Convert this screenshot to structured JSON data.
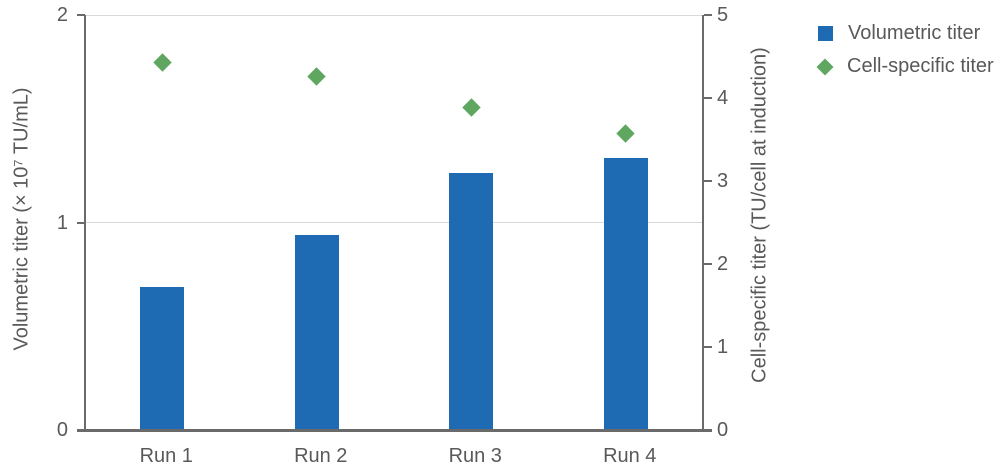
{
  "chart_data": {
    "type": "bar",
    "categories": [
      "Run 1",
      "Run 2",
      "Run 3",
      "Run 4"
    ],
    "series": [
      {
        "name": "Volumetric titer",
        "type": "bar",
        "axis": "left",
        "marker": "square",
        "color": "#1e6bb3",
        "values": [
          0.69,
          0.94,
          1.24,
          1.31
        ]
      },
      {
        "name": "Cell-specific titer",
        "type": "scatter",
        "axis": "right",
        "marker": "diamond",
        "color": "#5fa661",
        "values": [
          4.43,
          4.26,
          3.88,
          3.57
        ]
      }
    ],
    "left_axis": {
      "label": "Volumetric titer (× 10⁷ TU/mL)",
      "min": 0,
      "max": 2,
      "tick_values": [
        0,
        1,
        2
      ]
    },
    "right_axis": {
      "label": "Cell-specific titer (TU/cell at induction)",
      "min": 0,
      "max": 5,
      "tick_values": [
        0,
        1,
        2,
        3,
        4,
        5
      ]
    },
    "grid": "horizontal gridlines at left-axis values 1 and 2",
    "legend_position": "top-right"
  },
  "colors": {
    "bar_blue": "#1e6bb3",
    "marker_green": "#5fa661",
    "axis_gray": "#6a6a6a",
    "text_gray": "#595959",
    "gridline_gray": "#d9d9d9"
  }
}
